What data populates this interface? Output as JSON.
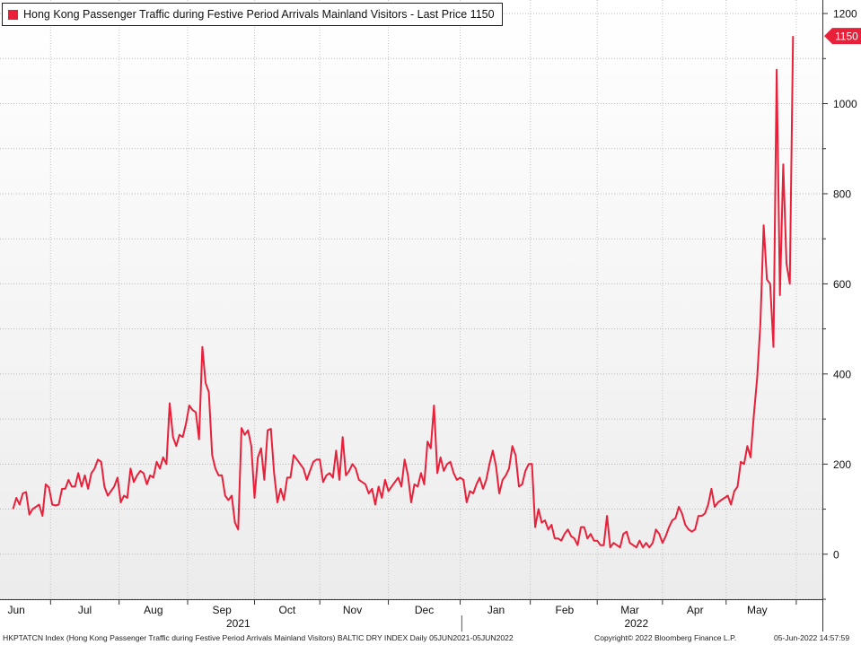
{
  "chart_data": {
    "type": "line",
    "title": "Hong Kong Passenger Traffic during Festive Period Arrivals Mainland Visitors - Last Price 1150",
    "last_price_label": "1150",
    "series": [
      {
        "name": "Hong Kong Passenger Traffic during Festive Period Arrivals Mainland Visitors",
        "color": "#e8203a",
        "points": [
          [
            0,
            100
          ],
          [
            1,
            125
          ],
          [
            2,
            110
          ],
          [
            3,
            135
          ],
          [
            4,
            138
          ],
          [
            5,
            88
          ],
          [
            6,
            100
          ],
          [
            7,
            105
          ],
          [
            8,
            110
          ],
          [
            9,
            85
          ],
          [
            10,
            155
          ],
          [
            11,
            148
          ],
          [
            12,
            110
          ],
          [
            13,
            108
          ],
          [
            14,
            110
          ],
          [
            15,
            145
          ],
          [
            16,
            145
          ],
          [
            17,
            165
          ],
          [
            18,
            150
          ],
          [
            19,
            150
          ],
          [
            20,
            180
          ],
          [
            21,
            150
          ],
          [
            22,
            175
          ],
          [
            23,
            145
          ],
          [
            24,
            180
          ],
          [
            25,
            190
          ],
          [
            26,
            210
          ],
          [
            27,
            205
          ],
          [
            28,
            150
          ],
          [
            29,
            130
          ],
          [
            30,
            140
          ],
          [
            31,
            150
          ],
          [
            32,
            170
          ],
          [
            33,
            115
          ],
          [
            34,
            130
          ],
          [
            35,
            125
          ],
          [
            36,
            190
          ],
          [
            37,
            160
          ],
          [
            38,
            175
          ],
          [
            39,
            185
          ],
          [
            40,
            180
          ],
          [
            41,
            155
          ],
          [
            42,
            175
          ],
          [
            43,
            170
          ],
          [
            44,
            205
          ],
          [
            45,
            190
          ],
          [
            46,
            215
          ],
          [
            47,
            200
          ],
          [
            48,
            335
          ],
          [
            49,
            260
          ],
          [
            50,
            240
          ],
          [
            51,
            265
          ],
          [
            52,
            260
          ],
          [
            53,
            290
          ],
          [
            54,
            330
          ],
          [
            55,
            320
          ],
          [
            56,
            315
          ],
          [
            57,
            255
          ],
          [
            58,
            460
          ],
          [
            59,
            380
          ],
          [
            60,
            360
          ],
          [
            61,
            220
          ],
          [
            62,
            190
          ],
          [
            63,
            175
          ],
          [
            64,
            175
          ],
          [
            65,
            130
          ],
          [
            66,
            120
          ],
          [
            67,
            130
          ],
          [
            68,
            70
          ],
          [
            69,
            55
          ],
          [
            70,
            280
          ],
          [
            71,
            265
          ],
          [
            72,
            275
          ],
          [
            73,
            240
          ],
          [
            74,
            125
          ],
          [
            75,
            215
          ],
          [
            76,
            235
          ],
          [
            77,
            165
          ],
          [
            78,
            275
          ],
          [
            79,
            278
          ],
          [
            80,
            180
          ],
          [
            81,
            115
          ],
          [
            82,
            145
          ],
          [
            83,
            120
          ],
          [
            84,
            170
          ],
          [
            85,
            170
          ],
          [
            86,
            220
          ],
          [
            87,
            210
          ],
          [
            88,
            200
          ],
          [
            89,
            190
          ],
          [
            90,
            165
          ],
          [
            91,
            185
          ],
          [
            92,
            205
          ],
          [
            93,
            210
          ],
          [
            94,
            210
          ],
          [
            95,
            160
          ],
          [
            96,
            175
          ],
          [
            97,
            180
          ],
          [
            98,
            170
          ],
          [
            99,
            230
          ],
          [
            100,
            165
          ],
          [
            101,
            260
          ],
          [
            102,
            175
          ],
          [
            103,
            185
          ],
          [
            104,
            200
          ],
          [
            105,
            190
          ],
          [
            106,
            165
          ],
          [
            107,
            160
          ],
          [
            108,
            155
          ],
          [
            109,
            135
          ],
          [
            110,
            145
          ],
          [
            111,
            110
          ],
          [
            112,
            150
          ],
          [
            113,
            125
          ],
          [
            114,
            165
          ],
          [
            115,
            140
          ],
          [
            116,
            150
          ],
          [
            117,
            160
          ],
          [
            118,
            170
          ],
          [
            119,
            150
          ],
          [
            120,
            210
          ],
          [
            121,
            175
          ],
          [
            122,
            115
          ],
          [
            123,
            155
          ],
          [
            124,
            150
          ],
          [
            125,
            180
          ],
          [
            126,
            155
          ],
          [
            127,
            250
          ],
          [
            128,
            235
          ],
          [
            129,
            330
          ],
          [
            130,
            180
          ],
          [
            131,
            215
          ],
          [
            132,
            185
          ],
          [
            133,
            200
          ],
          [
            134,
            205
          ],
          [
            135,
            180
          ],
          [
            136,
            165
          ],
          [
            137,
            170
          ],
          [
            138,
            165
          ],
          [
            139,
            115
          ],
          [
            140,
            140
          ],
          [
            141,
            135
          ],
          [
            142,
            155
          ],
          [
            143,
            170
          ],
          [
            144,
            145
          ],
          [
            145,
            165
          ],
          [
            146,
            200
          ],
          [
            147,
            230
          ],
          [
            148,
            195
          ],
          [
            149,
            135
          ],
          [
            150,
            165
          ],
          [
            151,
            175
          ],
          [
            152,
            190
          ],
          [
            153,
            240
          ],
          [
            154,
            220
          ],
          [
            155,
            150
          ],
          [
            156,
            155
          ],
          [
            157,
            185
          ],
          [
            158,
            200
          ],
          [
            159,
            200
          ],
          [
            160,
            60
          ],
          [
            161,
            100
          ],
          [
            162,
            70
          ],
          [
            163,
            75
          ],
          [
            164,
            55
          ],
          [
            165,
            65
          ],
          [
            166,
            35
          ],
          [
            167,
            35
          ],
          [
            168,
            30
          ],
          [
            169,
            45
          ],
          [
            170,
            55
          ],
          [
            171,
            40
          ],
          [
            172,
            35
          ],
          [
            173,
            20
          ],
          [
            174,
            60
          ],
          [
            175,
            60
          ],
          [
            176,
            35
          ],
          [
            177,
            45
          ],
          [
            178,
            30
          ],
          [
            179,
            30
          ],
          [
            180,
            20
          ],
          [
            181,
            20
          ],
          [
            182,
            85
          ],
          [
            183,
            15
          ],
          [
            184,
            25
          ],
          [
            185,
            20
          ],
          [
            186,
            15
          ],
          [
            187,
            45
          ],
          [
            188,
            50
          ],
          [
            189,
            25
          ],
          [
            190,
            20
          ],
          [
            191,
            15
          ],
          [
            192,
            30
          ],
          [
            193,
            15
          ],
          [
            194,
            25
          ],
          [
            195,
            15
          ],
          [
            196,
            25
          ],
          [
            197,
            55
          ],
          [
            198,
            45
          ],
          [
            199,
            25
          ],
          [
            200,
            40
          ],
          [
            201,
            60
          ],
          [
            202,
            75
          ],
          [
            203,
            80
          ],
          [
            204,
            105
          ],
          [
            205,
            90
          ],
          [
            206,
            65
          ],
          [
            207,
            55
          ],
          [
            208,
            50
          ],
          [
            209,
            55
          ],
          [
            210,
            85
          ],
          [
            211,
            85
          ],
          [
            212,
            90
          ],
          [
            213,
            110
          ],
          [
            214,
            145
          ],
          [
            215,
            105
          ],
          [
            216,
            115
          ],
          [
            217,
            120
          ],
          [
            218,
            125
          ],
          [
            219,
            130
          ],
          [
            220,
            110
          ],
          [
            221,
            140
          ],
          [
            222,
            150
          ],
          [
            223,
            205
          ],
          [
            224,
            200
          ],
          [
            225,
            240
          ],
          [
            226,
            215
          ],
          [
            227,
            310
          ],
          [
            228,
            390
          ],
          [
            229,
            510
          ],
          [
            230,
            730
          ],
          [
            231,
            610
          ],
          [
            232,
            600
          ],
          [
            233,
            460
          ],
          [
            234,
            1075
          ],
          [
            235,
            575
          ],
          [
            236,
            865
          ],
          [
            237,
            645
          ],
          [
            238,
            600
          ],
          [
            239,
            1150
          ]
        ]
      }
    ],
    "x_axis": {
      "months": [
        "Jun",
        "Jul",
        "Aug",
        "Sep",
        "Oct",
        "Nov",
        "Dec",
        "Jan",
        "Feb",
        "Mar",
        "Apr",
        "May"
      ],
      "month_positions": [
        1,
        22,
        43,
        64,
        84,
        104,
        126,
        148,
        169,
        189,
        209,
        228
      ],
      "years": [
        "2021",
        "2022"
      ],
      "year_positions": [
        69,
        191
      ]
    },
    "y_axis": {
      "ticks": [
        0,
        200,
        400,
        600,
        800,
        1000,
        1200
      ],
      "ylim": [
        -100,
        1230
      ]
    },
    "grid": true,
    "legend_position": "top-left"
  },
  "footer": {
    "left": "HKPTATCN Index (Hong Kong Passenger Traffic during Festive Period Arrivals Mainland Visitors) BALTIC DRY INDEX  Daily 05JUN2021-05JUN2022",
    "middle": "Copyright© 2022 Bloomberg Finance L.P.",
    "right": "05-Jun-2022 14:57:59"
  }
}
